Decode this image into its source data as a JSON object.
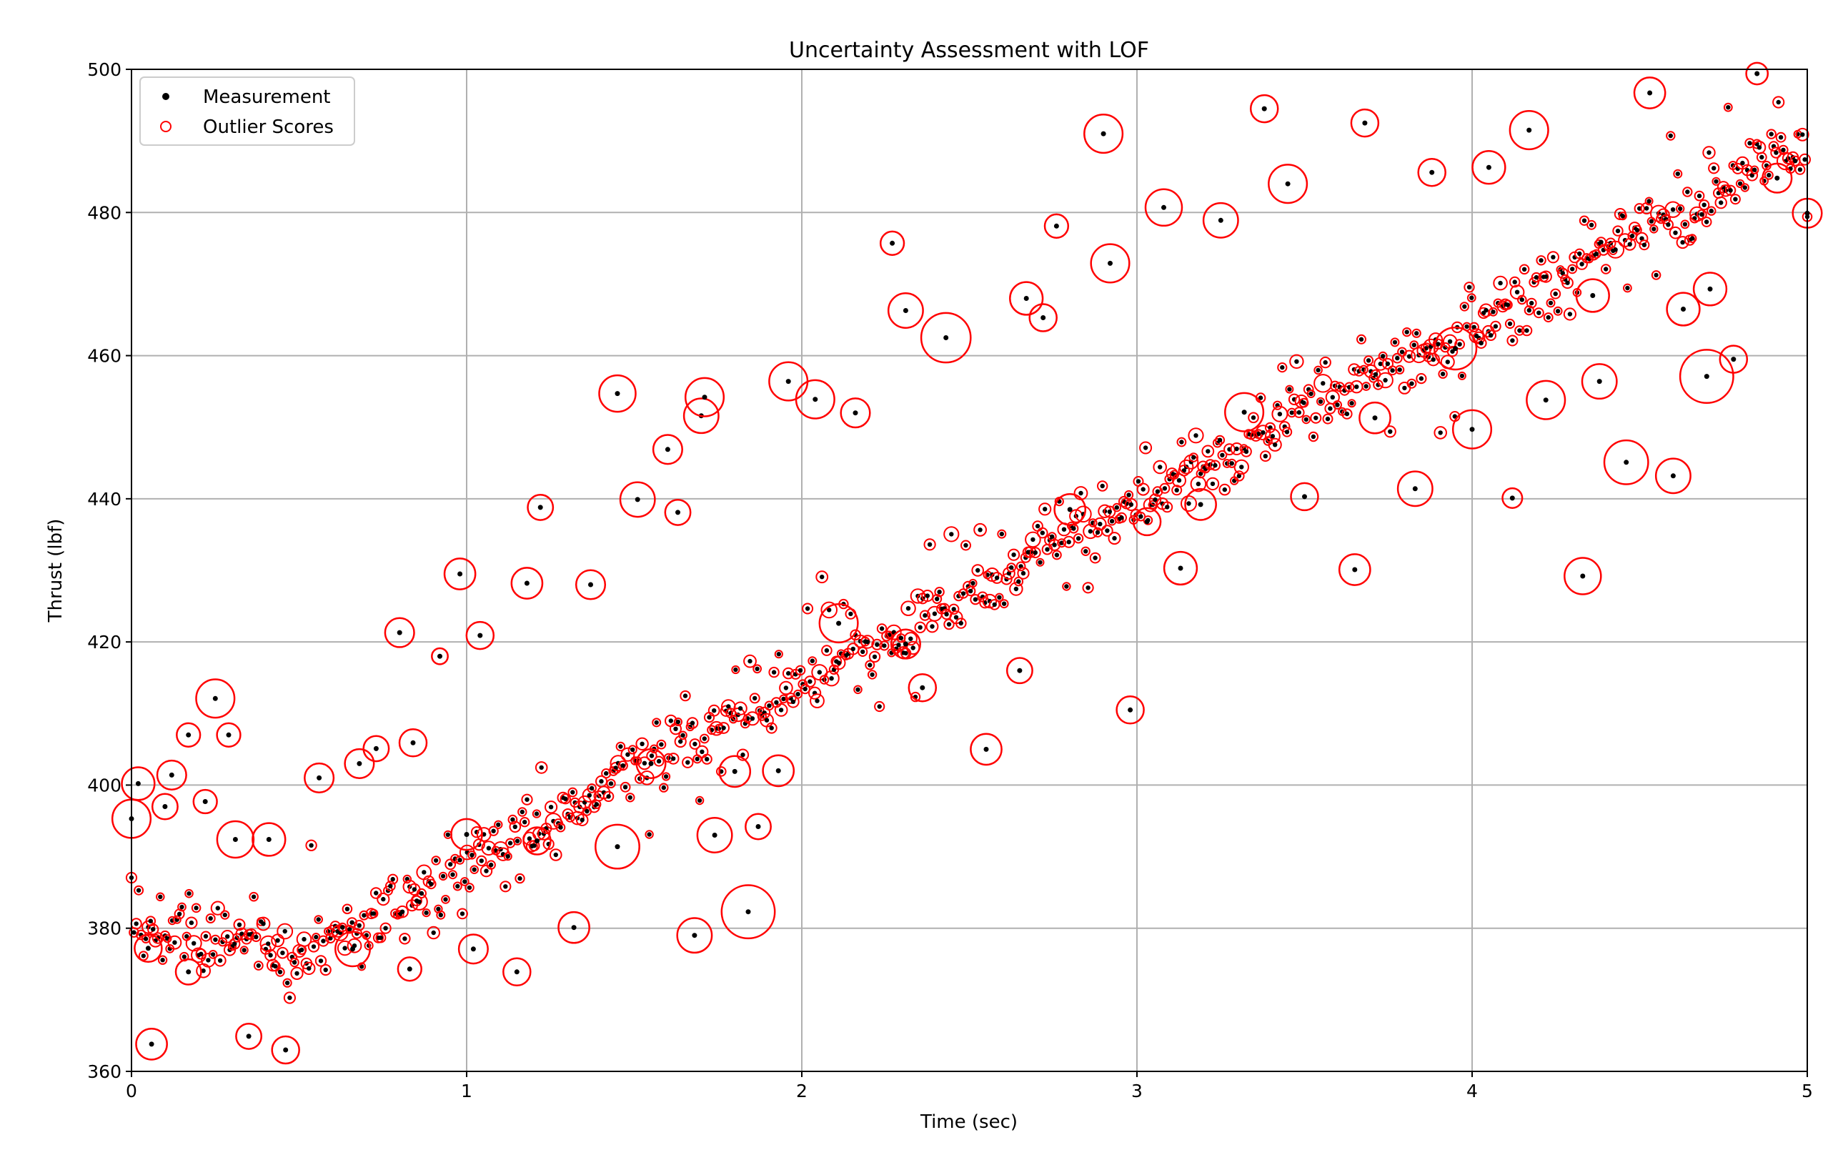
{
  "chart_data": {
    "type": "scatter",
    "title": "Uncertainty Assessment with LOF",
    "xlabel": "Time (sec)",
    "ylabel": "Thrust (lbf)",
    "xlim": [
      0,
      5
    ],
    "ylim": [
      360,
      500
    ],
    "xticks": [
      "0",
      "1",
      "2",
      "3",
      "4",
      "5"
    ],
    "yticks": [
      "360",
      "380",
      "400",
      "420",
      "440",
      "460",
      "480",
      "500"
    ],
    "grid": true,
    "legend_position": "top-left",
    "colors": {
      "measurement": "#000000",
      "outlier": "#ff0000",
      "grid": "#b0b0b0"
    },
    "series": [
      {
        "name": "Measurement",
        "marker": "dot",
        "points": [
          [
            0.0,
            395.3
          ],
          [
            0.02,
            400.2
          ],
          [
            0.05,
            377.2
          ],
          [
            0.06,
            363.8
          ],
          [
            0.1,
            397.0
          ],
          [
            0.12,
            401.4
          ],
          [
            0.17,
            407.0
          ],
          [
            0.17,
            373.9
          ],
          [
            0.22,
            397.7
          ],
          [
            0.25,
            412.1
          ],
          [
            0.29,
            407.0
          ],
          [
            0.31,
            392.4
          ],
          [
            0.35,
            364.9
          ],
          [
            0.41,
            392.4
          ],
          [
            0.46,
            363.0
          ],
          [
            0.56,
            401.0
          ],
          [
            0.66,
            377.1
          ],
          [
            0.68,
            403.0
          ],
          [
            0.73,
            405.1
          ],
          [
            0.8,
            421.3
          ],
          [
            0.83,
            374.3
          ],
          [
            0.84,
            405.9
          ],
          [
            0.92,
            418.0
          ],
          [
            0.98,
            429.5
          ],
          [
            1.0,
            393.1
          ],
          [
            1.02,
            377.1
          ],
          [
            1.04,
            420.9
          ],
          [
            1.15,
            373.9
          ],
          [
            1.18,
            428.2
          ],
          [
            1.21,
            392.2
          ],
          [
            1.22,
            438.8
          ],
          [
            1.32,
            380.1
          ],
          [
            1.37,
            428.0
          ],
          [
            1.45,
            391.4
          ],
          [
            1.45,
            454.7
          ],
          [
            1.51,
            439.9
          ],
          [
            1.55,
            403.0
          ],
          [
            1.6,
            446.9
          ],
          [
            1.63,
            438.1
          ],
          [
            1.68,
            379.0
          ],
          [
            1.7,
            451.6
          ],
          [
            1.71,
            454.2
          ],
          [
            1.74,
            393.0
          ],
          [
            1.8,
            401.9
          ],
          [
            1.84,
            382.3
          ],
          [
            1.87,
            394.2
          ],
          [
            1.93,
            402.0
          ],
          [
            1.96,
            456.4
          ],
          [
            2.04,
            453.9
          ],
          [
            2.11,
            422.6
          ],
          [
            2.16,
            452.0
          ],
          [
            2.27,
            475.7
          ],
          [
            2.31,
            419.7
          ],
          [
            2.31,
            466.3
          ],
          [
            2.36,
            413.6
          ],
          [
            2.43,
            462.5
          ],
          [
            2.55,
            405.0
          ],
          [
            2.65,
            416.0
          ],
          [
            2.67,
            468.0
          ],
          [
            2.72,
            465.3
          ],
          [
            2.76,
            478.1
          ],
          [
            2.8,
            438.5
          ],
          [
            2.9,
            491.0
          ],
          [
            2.92,
            472.9
          ],
          [
            2.98,
            410.5
          ],
          [
            3.03,
            436.8
          ],
          [
            3.08,
            480.7
          ],
          [
            3.13,
            430.3
          ],
          [
            3.19,
            439.2
          ],
          [
            3.25,
            478.9
          ],
          [
            3.32,
            452.1
          ],
          [
            3.38,
            494.5
          ],
          [
            3.45,
            484.0
          ],
          [
            3.5,
            440.3
          ],
          [
            3.65,
            430.1
          ],
          [
            3.68,
            492.5
          ],
          [
            3.71,
            451.3
          ],
          [
            3.83,
            441.4
          ],
          [
            3.88,
            485.6
          ],
          [
            3.95,
            461.0
          ],
          [
            4.0,
            449.7
          ],
          [
            4.05,
            486.3
          ],
          [
            4.12,
            440.1
          ],
          [
            4.17,
            491.5
          ],
          [
            4.22,
            453.8
          ],
          [
            4.33,
            429.2
          ],
          [
            4.36,
            468.4
          ],
          [
            4.38,
            456.4
          ],
          [
            4.46,
            445.1
          ],
          [
            4.53,
            496.7
          ],
          [
            4.6,
            443.2
          ],
          [
            4.63,
            466.5
          ],
          [
            4.7,
            457.1
          ],
          [
            4.71,
            469.3
          ],
          [
            4.78,
            459.5
          ],
          [
            4.85,
            499.4
          ],
          [
            4.91,
            484.8
          ],
          [
            5.0,
            479.9
          ]
        ]
      },
      {
        "name": "Outlier Scores",
        "marker": "hollow-circle",
        "scores": [
          1.6,
          1.3,
          1.0,
          1.2,
          0.9,
          1.1,
          0.8,
          0.9,
          0.8,
          1.6,
          0.8,
          1.5,
          0.9,
          1.3,
          1.0,
          1.1,
          1.4,
          1.1,
          0.9,
          1.1,
          0.8,
          1.0,
          0.4,
          1.2,
          1.2,
          1.1,
          1.0,
          1.0,
          1.2,
          1.0,
          0.9,
          1.2,
          1.1,
          1.9,
          1.5,
          1.4,
          1.1,
          1.1,
          0.9,
          1.4,
          1.4,
          1.6,
          1.4,
          1.2,
          2.4,
          0.9,
          1.2,
          1.6,
          1.6,
          1.6,
          1.1,
          0.8,
          1.1,
          1.4,
          1.0,
          2.2,
          1.2,
          0.9,
          1.3,
          1.0,
          0.8,
          1.2,
          1.6,
          1.6,
          1.0,
          1.0,
          1.5,
          1.3,
          1.2,
          1.4,
          1.6,
          1.0,
          1.6,
          1.0,
          1.2,
          1.0,
          1.2,
          1.4,
          1.0,
          1.8,
          1.6,
          1.3,
          0.6,
          1.6,
          1.6,
          1.5,
          1.3,
          1.4,
          1.9,
          1.2,
          1.4,
          1.3,
          2.4,
          1.3,
          1.0,
          0.7,
          1.1,
          1.1
        ]
      }
    ],
    "trend": {
      "x_range": [
        0.0,
        5.0
      ],
      "y_start": 380.0,
      "y_end": 490.0,
      "kink_y_at_0_5": 376.0
    },
    "legend": [
      {
        "label": "Measurement",
        "marker": "dot"
      },
      {
        "label": "Outlier Scores",
        "marker": "hollow-circle"
      }
    ]
  }
}
